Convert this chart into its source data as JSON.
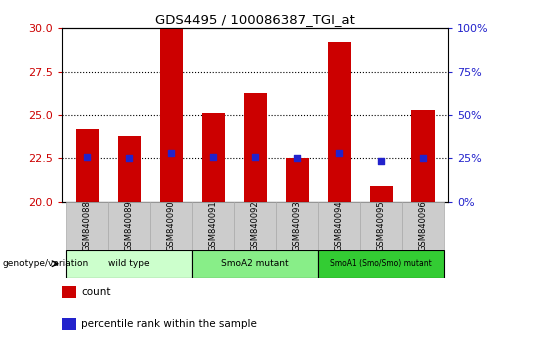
{
  "title": "GDS4495 / 100086387_TGI_at",
  "samples": [
    "GSM840088",
    "GSM840089",
    "GSM840090",
    "GSM840091",
    "GSM840092",
    "GSM840093",
    "GSM840094",
    "GSM840095",
    "GSM840096"
  ],
  "count_values": [
    24.2,
    23.8,
    30.0,
    25.1,
    26.3,
    22.5,
    29.2,
    20.9,
    25.3
  ],
  "percentile_values": [
    22.6,
    22.5,
    22.8,
    22.6,
    22.6,
    22.5,
    22.8,
    22.35,
    22.5
  ],
  "bar_bottom": 20.0,
  "ylim_left": [
    20,
    30
  ],
  "ylim_right": [
    0,
    100
  ],
  "yticks_left": [
    20,
    22.5,
    25,
    27.5,
    30
  ],
  "yticks_right": [
    0,
    25,
    50,
    75,
    100
  ],
  "bar_color": "#cc0000",
  "dot_color": "#2222cc",
  "groups": [
    {
      "label": "wild type",
      "start": 0,
      "end": 3,
      "color": "#ccffcc"
    },
    {
      "label": "SmoA2 mutant",
      "start": 3,
      "end": 6,
      "color": "#88ee88"
    },
    {
      "label": "SmoA1 (Smo/Smo) mutant",
      "start": 6,
      "end": 9,
      "color": "#33cc33"
    }
  ],
  "legend_count_label": "count",
  "legend_pct_label": "percentile rank within the sample",
  "genotype_label": "genotype/variation",
  "grid_dotted_color": "#000000",
  "tick_label_color_left": "#cc0000",
  "tick_label_color_right": "#2222cc",
  "bar_width": 0.55,
  "sample_box_color": "#cccccc",
  "bg_color": "#ffffff"
}
